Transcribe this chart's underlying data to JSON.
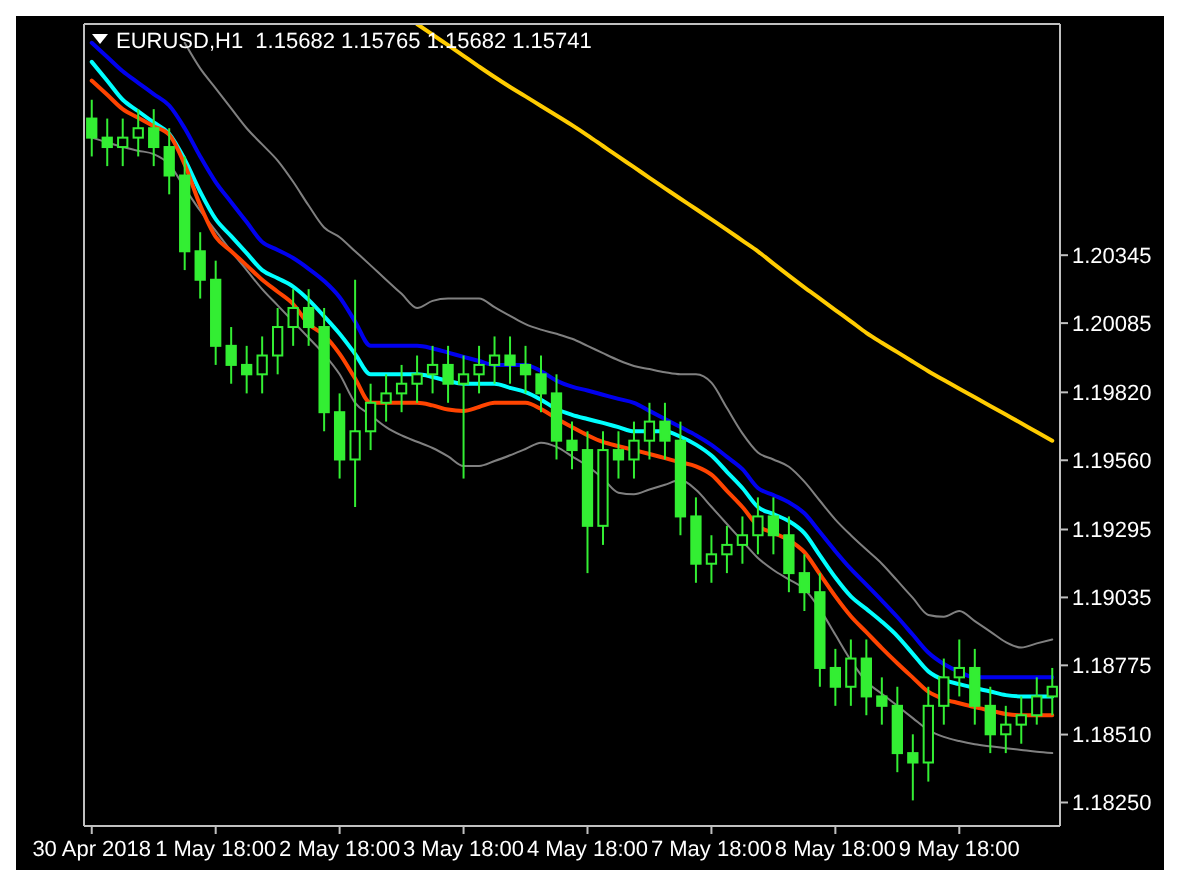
{
  "chart_data": {
    "type": "candlestick",
    "title": "EURUSD,H1  1.15682 1.15765 1.15682 1.15741",
    "color": "#33ee33",
    "categories": [
      "30 Apr 2018",
      null,
      null,
      null,
      null,
      null,
      null,
      null,
      "1 May 18:00",
      null,
      null,
      null,
      null,
      null,
      null,
      null,
      "2 May 18:00",
      null,
      null,
      null,
      null,
      null,
      null,
      null,
      "3 May 18:00",
      null,
      null,
      null,
      null,
      null,
      null,
      null,
      "4 May 18:00",
      null,
      null,
      null,
      null,
      null,
      null,
      null,
      "7 May 18:00",
      null,
      null,
      null,
      null,
      null,
      null,
      null,
      "8 May 18:00",
      null,
      null,
      null,
      null,
      null,
      null,
      null,
      "9 May 18:00",
      null,
      null,
      null,
      null,
      null,
      null
    ],
    "ohlc": [
      [
        1.20868,
        1.2094,
        1.20723,
        1.20795
      ],
      [
        1.20795,
        1.20868,
        1.20686,
        1.20759
      ],
      [
        1.20759,
        1.20868,
        1.20686,
        1.20795
      ],
      [
        1.20795,
        1.20904,
        1.20723,
        1.20831
      ],
      [
        1.20831,
        1.20904,
        1.20686,
        1.20759
      ],
      [
        1.20759,
        1.20831,
        1.20578,
        1.2065
      ],
      [
        1.2065,
        1.20723,
        1.20288,
        1.2036
      ],
      [
        1.2036,
        1.20433,
        1.20179,
        1.20251
      ],
      [
        1.20251,
        1.20324,
        1.19925,
        1.19998
      ],
      [
        1.19998,
        1.2007,
        1.19853,
        1.19925
      ],
      [
        1.19925,
        1.19998,
        1.19816,
        1.19889
      ],
      [
        1.19889,
        1.20034,
        1.19816,
        1.19961
      ],
      [
        1.19961,
        1.20143,
        1.19889,
        1.2007
      ],
      [
        1.2007,
        1.20215,
        1.19998,
        1.20143
      ],
      [
        1.20143,
        1.20215,
        1.19998,
        1.2007
      ],
      [
        1.2007,
        1.20143,
        1.19671,
        1.19744
      ],
      [
        1.19744,
        1.19816,
        1.1949,
        1.19563
      ],
      [
        1.19563,
        1.20251,
        1.19381,
        1.19671
      ],
      [
        1.19671,
        1.19853,
        1.19599,
        1.1978
      ],
      [
        1.1978,
        1.19889,
        1.19708,
        1.19816
      ],
      [
        1.19816,
        1.19925,
        1.19744,
        1.19853
      ],
      [
        1.19853,
        1.19961,
        1.1978,
        1.19889
      ],
      [
        1.19889,
        1.19998,
        1.19816,
        1.19925
      ],
      [
        1.19925,
        1.19998,
        1.1978,
        1.19853
      ],
      [
        1.19853,
        1.19961,
        1.1949,
        1.19889
      ],
      [
        1.19889,
        1.19998,
        1.19816,
        1.19925
      ],
      [
        1.19925,
        1.20034,
        1.19853,
        1.19961
      ],
      [
        1.19961,
        1.20034,
        1.19853,
        1.19925
      ],
      [
        1.19925,
        1.19998,
        1.19816,
        1.19889
      ],
      [
        1.19889,
        1.19961,
        1.19744,
        1.19816
      ],
      [
        1.19816,
        1.19889,
        1.19563,
        1.19635
      ],
      [
        1.19635,
        1.19708,
        1.19526,
        1.19599
      ],
      [
        1.19599,
        1.19671,
        1.19128,
        1.19309
      ],
      [
        1.19309,
        1.19671,
        1.19236,
        1.19599
      ],
      [
        1.19599,
        1.19671,
        1.1949,
        1.19563
      ],
      [
        1.19563,
        1.19708,
        1.1949,
        1.19635
      ],
      [
        1.19635,
        1.1978,
        1.19563,
        1.19708
      ],
      [
        1.19708,
        1.1978,
        1.19563,
        1.19635
      ],
      [
        1.19635,
        1.19708,
        1.19273,
        1.19345
      ],
      [
        1.19345,
        1.19418,
        1.19091,
        1.19164
      ],
      [
        1.19164,
        1.19273,
        1.19091,
        1.192
      ],
      [
        1.192,
        1.19309,
        1.19128,
        1.19236
      ],
      [
        1.19236,
        1.19345,
        1.19164,
        1.19273
      ],
      [
        1.19273,
        1.19418,
        1.192,
        1.19345
      ],
      [
        1.19345,
        1.19418,
        1.192,
        1.19273
      ],
      [
        1.19273,
        1.19345,
        1.19055,
        1.19128
      ],
      [
        1.19128,
        1.192,
        1.18983,
        1.19055
      ],
      [
        1.19055,
        1.19128,
        1.18693,
        1.18765
      ],
      [
        1.18765,
        1.18838,
        1.1862,
        1.18693
      ],
      [
        1.18693,
        1.18874,
        1.1862,
        1.18801
      ],
      [
        1.18801,
        1.18874,
        1.18584,
        1.18656
      ],
      [
        1.18656,
        1.18729,
        1.18548,
        1.1862
      ],
      [
        1.1862,
        1.18693,
        1.18366,
        1.18439
      ],
      [
        1.18439,
        1.18511,
        1.18258,
        1.18403
      ],
      [
        1.18403,
        1.18693,
        1.1833,
        1.1862
      ],
      [
        1.1862,
        1.18801,
        1.18548,
        1.18729
      ],
      [
        1.18729,
        1.18874,
        1.18656,
        1.18765
      ],
      [
        1.18765,
        1.18838,
        1.18548,
        1.1862
      ],
      [
        1.1862,
        1.18693,
        1.18439,
        1.18511
      ],
      [
        1.18511,
        1.1862,
        1.18439,
        1.18548
      ],
      [
        1.18548,
        1.18656,
        1.18475,
        1.18584
      ],
      [
        1.18584,
        1.18729,
        1.18548,
        1.18656
      ],
      [
        1.18656,
        1.18765,
        1.18584,
        1.18693
      ]
    ],
    "series": [
      {
        "type": "line",
        "color": "#ffcc00",
        "values": [
          null,
          null,
          null,
          null,
          null,
          null,
          null,
          null,
          null,
          null,
          null,
          null,
          null,
          null,
          null,
          null,
          null,
          null,
          null,
          null,
          null,
          1.2123,
          1.21189,
          1.21149,
          1.21108,
          1.21067,
          1.21027,
          1.20989,
          1.20953,
          1.20916,
          1.2088,
          1.20843,
          1.20804,
          1.20763,
          1.20722,
          1.20682,
          1.20641,
          1.20601,
          1.20561,
          1.20522,
          1.20482,
          1.20442,
          1.20401,
          1.2036,
          1.20313,
          1.20267,
          1.20222,
          1.20179,
          1.20135,
          1.20092,
          1.20048,
          1.2001,
          1.19974,
          1.19937,
          1.19901,
          1.19867,
          1.19834,
          1.19801,
          1.19768,
          1.19735,
          1.19702,
          1.19668,
          1.19635
        ]
      },
      {
        "type": "line",
        "color": "#808080",
        "values": [
          null,
          null,
          null,
          null,
          null,
          null,
          1.21158,
          1.2106,
          1.20984,
          1.20907,
          1.20831,
          1.20769,
          1.20707,
          1.20626,
          1.20535,
          1.20451,
          1.20414,
          1.2036,
          1.20306,
          1.20251,
          1.20197,
          1.20143,
          1.2017,
          1.20179,
          1.20179,
          1.20179,
          1.20146,
          1.20113,
          1.20081,
          1.2006,
          1.20044,
          1.20025,
          1.19998,
          1.1997,
          1.19943,
          1.19921,
          1.19909,
          1.19897,
          1.19889,
          1.19889,
          1.19857,
          1.1976,
          1.19663,
          1.1959,
          1.19563,
          1.19535,
          1.19478,
          1.19405,
          1.19333,
          1.19273,
          1.19218,
          1.19164,
          1.19099,
          1.19033,
          1.18968,
          1.18961,
          1.18983,
          1.18944,
          1.18904,
          1.18864,
          1.18843,
          1.18859,
          1.18874
        ]
      },
      {
        "type": "line",
        "color": "#808080",
        "values": [
          1.20795,
          1.20777,
          1.20759,
          1.20745,
          1.20732,
          1.20693,
          1.20602,
          1.20515,
          1.20438,
          1.2036,
          1.20288,
          1.20215,
          1.20153,
          1.20091,
          1.20029,
          1.19966,
          1.19889,
          1.1978,
          1.19733,
          1.19687,
          1.19655,
          1.19631,
          1.19607,
          1.19575,
          1.19538,
          1.19538,
          1.19557,
          1.19579,
          1.19603,
          1.19627,
          1.19611,
          1.19575,
          1.19538,
          1.1949,
          1.19436,
          1.1943,
          1.19448,
          1.19466,
          1.19484,
          1.19447,
          1.19382,
          1.19316,
          1.19251,
          1.19186,
          1.1914,
          1.19104,
          1.19067,
          1.1899,
          1.18892,
          1.18794,
          1.18713,
          1.18666,
          1.1862,
          1.18573,
          1.18527,
          1.18501,
          1.18485,
          1.18473,
          1.18465,
          1.18458,
          1.18451,
          1.18444,
          1.18439
        ]
      },
      {
        "type": "line",
        "color": "#0000ee",
        "values": [
          1.21158,
          1.21104,
          1.21049,
          1.21005,
          1.20962,
          1.20918,
          1.20831,
          1.20723,
          1.20625,
          1.20548,
          1.20472,
          1.20396,
          1.20365,
          1.20334,
          1.20293,
          1.20246,
          1.20184,
          1.20091,
          1.19998,
          1.19998,
          1.19998,
          1.19998,
          1.19988,
          1.19972,
          1.19956,
          1.1994,
          1.19925,
          1.19925,
          1.19925,
          1.19901,
          1.19865,
          1.19842,
          1.19827,
          1.19811,
          1.19795,
          1.1978,
          1.19749,
          1.19718,
          1.19687,
          1.19656,
          1.19619,
          1.19573,
          1.19526,
          1.19454,
          1.19427,
          1.19399,
          1.19357,
          1.19285,
          1.19212,
          1.19144,
          1.19084,
          1.19023,
          1.1896,
          1.18892,
          1.18824,
          1.1878,
          1.1875,
          1.18729,
          1.18729,
          1.18729,
          1.18729,
          1.18729,
          1.18729
        ]
      },
      {
        "type": "line",
        "color": "#00ffff",
        "values": [
          1.21085,
          1.21013,
          1.2094,
          1.20896,
          1.20853,
          1.2081,
          1.20712,
          1.20588,
          1.20483,
          1.20418,
          1.20353,
          1.20288,
          1.20257,
          1.20225,
          1.20174,
          1.20111,
          1.20044,
          1.19967,
          1.19889,
          1.19889,
          1.19889,
          1.19889,
          1.19879,
          1.19863,
          1.19853,
          1.19853,
          1.19853,
          1.19837,
          1.19821,
          1.19792,
          1.19756,
          1.19734,
          1.19718,
          1.19703,
          1.19687,
          1.19671,
          1.19671,
          1.19671,
          1.1965,
          1.1962,
          1.19578,
          1.19516,
          1.19454,
          1.19381,
          1.19354,
          1.19327,
          1.19281,
          1.19196,
          1.19111,
          1.19039,
          1.18991,
          1.18942,
          1.18887,
          1.18819,
          1.18752,
          1.18719,
          1.18703,
          1.18688,
          1.18675,
          1.18661,
          1.18656,
          1.18656,
          1.18656
        ]
      },
      {
        "type": "line",
        "color": "#ff4400",
        "values": [
          1.21013,
          1.20959,
          1.20904,
          1.20871,
          1.20839,
          1.20806,
          1.20692,
          1.20536,
          1.20415,
          1.2036,
          1.20306,
          1.20251,
          1.20205,
          1.20158,
          1.20081,
          1.20039,
          1.19967,
          1.19873,
          1.1978,
          1.1978,
          1.1978,
          1.1978,
          1.1977,
          1.19754,
          1.19749,
          1.19764,
          1.1978,
          1.1978,
          1.1978,
          1.19756,
          1.1972,
          1.19687,
          1.19656,
          1.1963,
          1.19614,
          1.19599,
          1.19584,
          1.19568,
          1.19552,
          1.19537,
          1.19505,
          1.19443,
          1.19381,
          1.19309,
          1.19282,
          1.19254,
          1.19208,
          1.19124,
          1.19039,
          1.18963,
          1.18902,
          1.18841,
          1.18783,
          1.18728,
          1.18674,
          1.18646,
          1.1863,
          1.18615,
          1.18602,
          1.18589,
          1.18584,
          1.18584,
          1.18584
        ]
      }
    ],
    "ylim": [
      1.1816,
      1.2123
    ],
    "yticks": [
      1.20345,
      1.20085,
      {
        "value": 1.1982,
        "label": "1.19820"
      },
      {
        "value": 1.1956,
        "label": "1.19560"
      },
      1.19295,
      1.19035,
      1.18775,
      {
        "value": 1.1851,
        "label": "1.18510"
      },
      {
        "value": 1.1825,
        "label": "1.18250"
      }
    ]
  }
}
